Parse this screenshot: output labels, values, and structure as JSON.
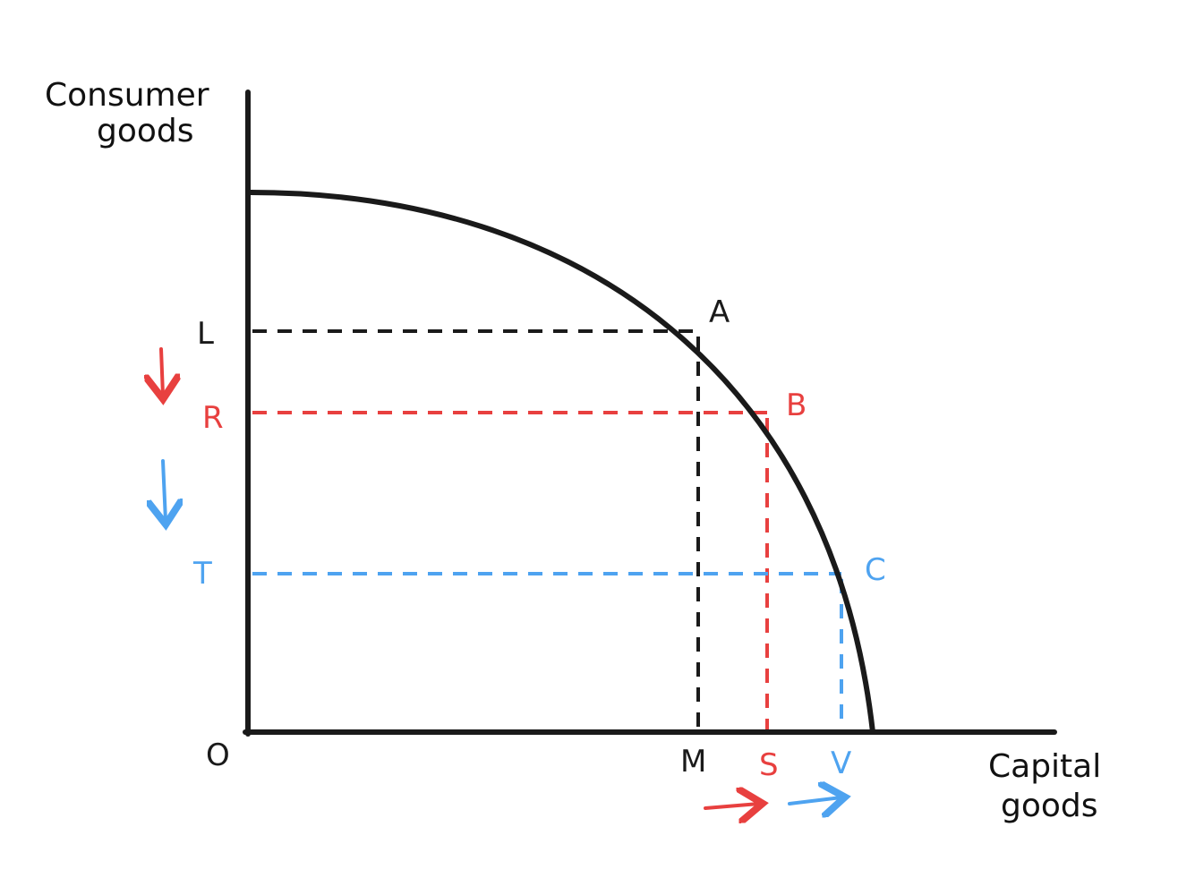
{
  "axes": {
    "y_label_line1": "Consumer",
    "y_label_line2": "goods",
    "x_label_line1": "Capital",
    "x_label_line2": "goods",
    "origin": "O"
  },
  "points": {
    "A": "A",
    "B": "B",
    "C": "C"
  },
  "y_ticks": {
    "L": "L",
    "R": "R",
    "T": "T"
  },
  "x_ticks": {
    "M": "M",
    "S": "S",
    "V": "V"
  },
  "colors": {
    "black": "#1a1a1a",
    "red": "#e8403f",
    "blue": "#4ea3f0"
  }
}
